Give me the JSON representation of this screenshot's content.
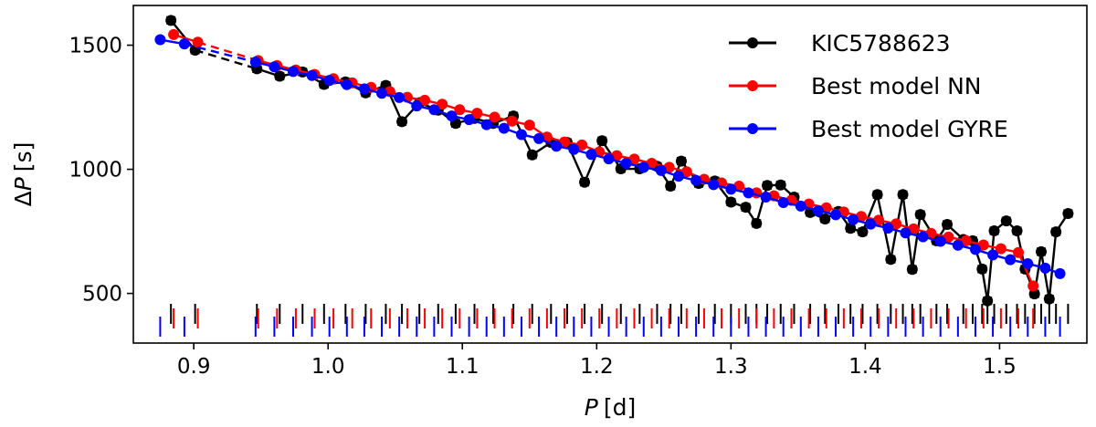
{
  "chart_data": {
    "type": "line",
    "xlabel_symbol": "P",
    "xlabel_unit": "[d]",
    "ylabel_prefix": "Δ",
    "ylabel_symbol": "P",
    "ylabel_unit": "[s]",
    "xlim": [
      0.855,
      1.565
    ],
    "ylim": [
      300,
      1660
    ],
    "xticks": [
      0.9,
      1.0,
      1.1,
      1.2,
      1.3,
      1.4,
      1.5
    ],
    "xtick_labels": [
      "0.9",
      "1.0",
      "1.1",
      "1.2",
      "1.3",
      "1.4",
      "1.5"
    ],
    "yticks": [
      500,
      1000,
      1500
    ],
    "ytick_labels": [
      "500",
      "1000",
      "1500"
    ],
    "legend_position": "top-right",
    "series": [
      {
        "name": "KIC5788623",
        "color": "#000000",
        "errorbars": true,
        "points": [
          [
            0.883,
            1600
          ],
          [
            0.901,
            1480
          ],
          [
            0.947,
            1405
          ],
          [
            0.964,
            1375
          ],
          [
            0.981,
            1392
          ],
          [
            0.997,
            1342
          ],
          [
            1.013,
            1352
          ],
          [
            1.028,
            1308
          ],
          [
            1.043,
            1338
          ],
          [
            1.055,
            1192
          ],
          [
            1.068,
            1268
          ],
          [
            1.082,
            1238
          ],
          [
            1.095,
            1185
          ],
          [
            1.109,
            1205
          ],
          [
            1.123,
            1185
          ],
          [
            1.138,
            1215
          ],
          [
            1.152,
            1058
          ],
          [
            1.166,
            1108
          ],
          [
            1.178,
            1108
          ],
          [
            1.191,
            948
          ],
          [
            1.204,
            1115
          ],
          [
            1.218,
            1002
          ],
          [
            1.232,
            1002
          ],
          [
            1.245,
            1012
          ],
          [
            1.255,
            932
          ],
          [
            1.263,
            1033
          ],
          [
            1.276,
            943
          ],
          [
            1.288,
            953
          ],
          [
            1.3,
            868
          ],
          [
            1.311,
            847
          ],
          [
            1.319,
            782
          ],
          [
            1.327,
            935
          ],
          [
            1.337,
            937
          ],
          [
            1.347,
            888
          ],
          [
            1.359,
            826
          ],
          [
            1.37,
            800
          ],
          [
            1.38,
            830
          ],
          [
            1.389,
            762
          ],
          [
            1.398,
            748
          ],
          [
            1.409,
            898
          ],
          [
            1.419,
            637
          ],
          [
            1.428,
            898
          ],
          [
            1.435,
            597
          ],
          [
            1.441,
            818
          ],
          [
            1.453,
            712
          ],
          [
            1.461,
            778
          ],
          [
            1.473,
            717
          ],
          [
            1.48,
            712
          ],
          [
            1.487,
            598
          ],
          [
            1.491,
            470
          ],
          [
            1.496,
            752
          ],
          [
            1.505,
            792
          ],
          [
            1.513,
            752
          ],
          [
            1.519,
            598
          ],
          [
            1.526,
            498
          ],
          [
            1.531,
            668
          ],
          [
            1.537,
            478
          ],
          [
            1.542,
            748
          ],
          [
            1.551,
            822
          ]
        ],
        "gaps": [
          [
            0.901,
            0.947
          ]
        ]
      },
      {
        "name": "Best model NN",
        "color": "#ff0000",
        "errorbars": false,
        "points": [
          [
            0.885,
            1543
          ],
          [
            0.903,
            1512
          ],
          [
            0.948,
            1438
          ],
          [
            0.962,
            1418
          ],
          [
            0.976,
            1400
          ],
          [
            0.99,
            1382
          ],
          [
            1.004,
            1365
          ],
          [
            1.018,
            1348
          ],
          [
            1.032,
            1330
          ],
          [
            1.046,
            1313
          ],
          [
            1.059,
            1290
          ],
          [
            1.072,
            1278
          ],
          [
            1.085,
            1262
          ],
          [
            1.098,
            1240
          ],
          [
            1.111,
            1226
          ],
          [
            1.124,
            1210
          ],
          [
            1.137,
            1194
          ],
          [
            1.15,
            1178
          ],
          [
            1.163,
            1130
          ],
          [
            1.176,
            1110
          ],
          [
            1.189,
            1098
          ],
          [
            1.202,
            1070
          ],
          [
            1.215,
            1055
          ],
          [
            1.228,
            1041
          ],
          [
            1.241,
            1024
          ],
          [
            1.254,
            1008
          ],
          [
            1.267,
            990
          ],
          [
            1.28,
            960
          ],
          [
            1.293,
            945
          ],
          [
            1.306,
            932
          ],
          [
            1.319,
            905
          ],
          [
            1.332,
            893
          ],
          [
            1.345,
            875
          ],
          [
            1.358,
            860
          ],
          [
            1.371,
            845
          ],
          [
            1.384,
            828
          ],
          [
            1.397,
            810
          ],
          [
            1.41,
            795
          ],
          [
            1.423,
            780
          ],
          [
            1.436,
            760
          ],
          [
            1.449,
            742
          ],
          [
            1.462,
            727
          ],
          [
            1.475,
            712
          ],
          [
            1.488,
            695
          ],
          [
            1.501,
            680
          ],
          [
            1.514,
            665
          ],
          [
            1.525,
            530
          ]
        ],
        "gaps": [
          [
            0.903,
            0.948
          ]
        ]
      },
      {
        "name": "Best model GYRE",
        "color": "#0000ff",
        "errorbars": false,
        "points": [
          [
            0.875,
            1522
          ],
          [
            0.893,
            1505
          ],
          [
            0.946,
            1432
          ],
          [
            0.96,
            1413
          ],
          [
            0.974,
            1394
          ],
          [
            0.988,
            1378
          ],
          [
            1.001,
            1358
          ],
          [
            1.014,
            1341
          ],
          [
            1.027,
            1324
          ],
          [
            1.04,
            1306
          ],
          [
            1.053,
            1289
          ],
          [
            1.066,
            1255
          ],
          [
            1.079,
            1240
          ],
          [
            1.092,
            1215
          ],
          [
            1.105,
            1200
          ],
          [
            1.118,
            1180
          ],
          [
            1.131,
            1165
          ],
          [
            1.144,
            1140
          ],
          [
            1.157,
            1124
          ],
          [
            1.17,
            1093
          ],
          [
            1.183,
            1080
          ],
          [
            1.196,
            1060
          ],
          [
            1.209,
            1042
          ],
          [
            1.222,
            1024
          ],
          [
            1.235,
            1008
          ],
          [
            1.248,
            995
          ],
          [
            1.261,
            972
          ],
          [
            1.274,
            955
          ],
          [
            1.287,
            938
          ],
          [
            1.3,
            920
          ],
          [
            1.313,
            905
          ],
          [
            1.326,
            888
          ],
          [
            1.339,
            866
          ],
          [
            1.352,
            852
          ],
          [
            1.365,
            833
          ],
          [
            1.378,
            817
          ],
          [
            1.391,
            797
          ],
          [
            1.404,
            779
          ],
          [
            1.417,
            763
          ],
          [
            1.43,
            744
          ],
          [
            1.443,
            728
          ],
          [
            1.456,
            710
          ],
          [
            1.469,
            694
          ],
          [
            1.482,
            677
          ],
          [
            1.495,
            655
          ],
          [
            1.508,
            636
          ],
          [
            1.521,
            620
          ],
          [
            1.534,
            602
          ],
          [
            1.545,
            580
          ]
        ],
        "gaps": [
          [
            0.893,
            0.946
          ]
        ]
      }
    ]
  }
}
